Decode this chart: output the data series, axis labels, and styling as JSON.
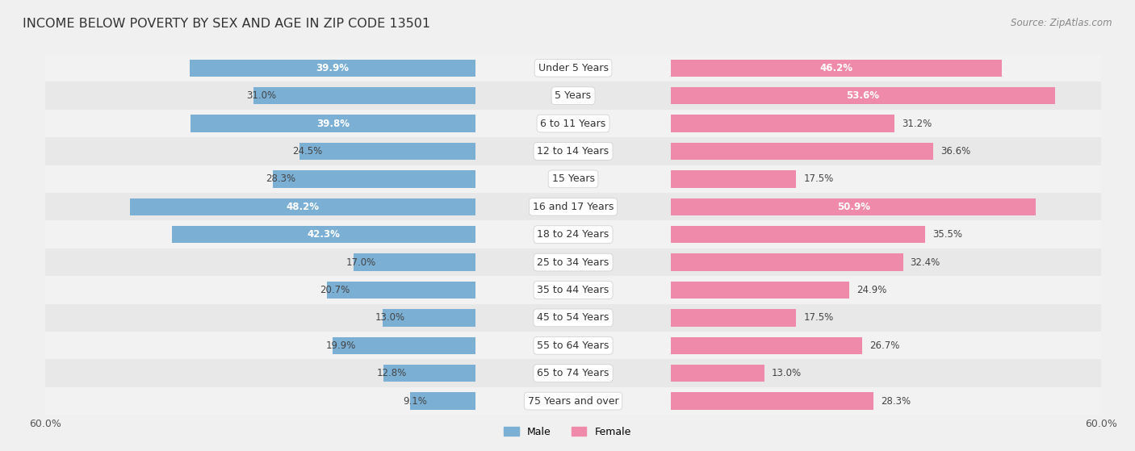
{
  "title": "INCOME BELOW POVERTY BY SEX AND AGE IN ZIP CODE 13501",
  "source": "Source: ZipAtlas.com",
  "categories": [
    "Under 5 Years",
    "5 Years",
    "6 to 11 Years",
    "12 to 14 Years",
    "15 Years",
    "16 and 17 Years",
    "18 to 24 Years",
    "25 to 34 Years",
    "35 to 44 Years",
    "45 to 54 Years",
    "55 to 64 Years",
    "65 to 74 Years",
    "75 Years and over"
  ],
  "male_values": [
    39.9,
    31.0,
    39.8,
    24.5,
    28.3,
    48.2,
    42.3,
    17.0,
    20.7,
    13.0,
    19.9,
    12.8,
    9.1
  ],
  "female_values": [
    46.2,
    53.6,
    31.2,
    36.6,
    17.5,
    50.9,
    35.5,
    32.4,
    24.9,
    17.5,
    26.7,
    13.0,
    28.3
  ],
  "male_color": "#7bafd4",
  "female_color": "#f08aaa",
  "male_label": "Male",
  "female_label": "Female",
  "axis_max": 60.0,
  "row_bg_colors": [
    "#f2f2f2",
    "#e8e8e8"
  ],
  "title_fontsize": 11.5,
  "source_fontsize": 8.5,
  "label_fontsize": 9,
  "bar_label_fontsize": 8.5,
  "legend_fontsize": 9,
  "axis_label_fontsize": 9
}
